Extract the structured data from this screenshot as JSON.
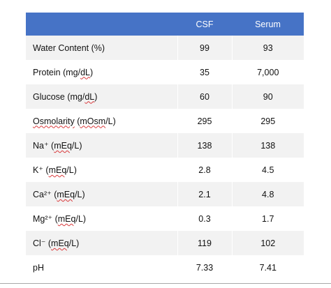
{
  "table": {
    "headers": [
      "",
      "CSF",
      "Serum"
    ],
    "rows": [
      {
        "label": "Water Content (%)",
        "csf": "99",
        "serum": "93"
      },
      {
        "label": "Protein (mg/dL)",
        "csf": "35",
        "serum": "7,000"
      },
      {
        "label": "Glucose (mg/dL)",
        "csf": "60",
        "serum": "90"
      },
      {
        "label": "Osmolarity (mOsm/L)",
        "csf": "295",
        "serum": "295"
      },
      {
        "label": "Na⁺ (mEq/L)",
        "csf": "138",
        "serum": "138"
      },
      {
        "label": "K⁺ (mEq/L)",
        "csf": "2.8",
        "serum": "4.5"
      },
      {
        "label": "Ca²⁺ (mEq/L)",
        "csf": "2.1",
        "serum": "4.8"
      },
      {
        "label": "Mg²⁺ (mEq/L)",
        "csf": "0.3",
        "serum": "1.7"
      },
      {
        "label": "Cl⁻ (mEq/L)",
        "csf": "119",
        "serum": "102"
      },
      {
        "label": "pH",
        "csf": "7.33",
        "serum": "7.41"
      }
    ]
  },
  "colors": {
    "header_background": "#4673c6",
    "header_text": "#ffffff",
    "stripe_background": "#f2f2f2",
    "spellcheck_underline": "#d9383a"
  }
}
